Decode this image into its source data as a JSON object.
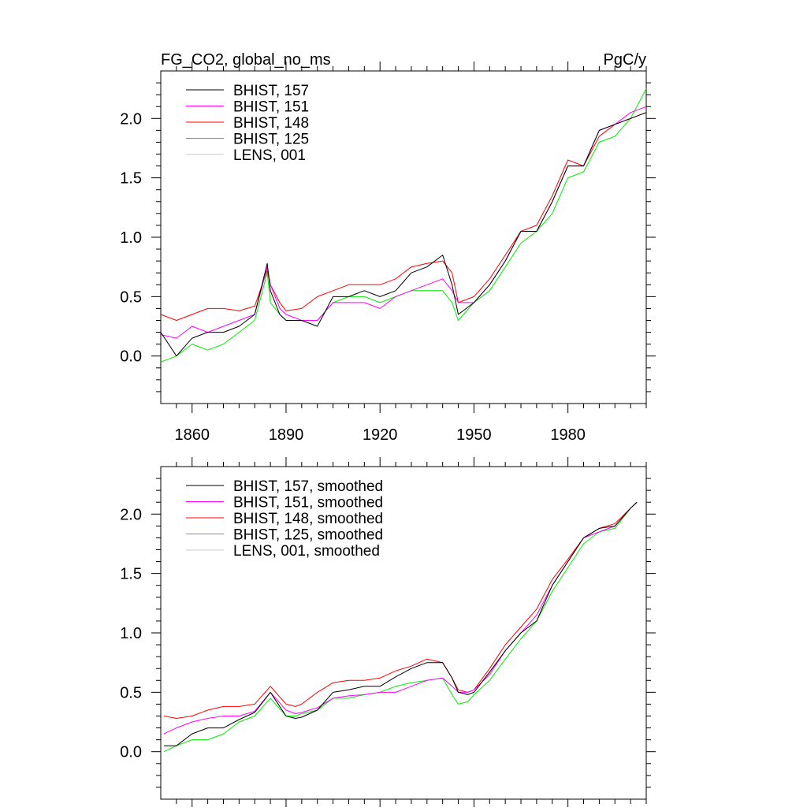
{
  "colors": {
    "black": "#000000",
    "magenta": "#ff00ff",
    "red": "#ff0000",
    "green": "#00ee00",
    "gray": "#c8c8c8"
  },
  "chart_data": [
    {
      "type": "line",
      "title_left": "FG_CO2, global_no_ms",
      "title_right": "PgC/y",
      "xlim": [
        1850,
        2005
      ],
      "ylim": [
        -0.4,
        2.4
      ],
      "x_ticks": [
        1860,
        1890,
        1920,
        1950,
        1980
      ],
      "x_tick_labels": [
        "1860",
        "1890",
        "1920",
        "1950",
        "1980"
      ],
      "y_ticks": [
        0.0,
        0.5,
        1.0,
        1.5,
        2.0
      ],
      "y_tick_labels": [
        "0.0",
        "0.5",
        "1.0",
        "1.5",
        "2.0"
      ],
      "legend_position": "top-left",
      "grid": false,
      "series": [
        {
          "name": "BHIST, 157",
          "color": "black",
          "x": [
            1850,
            1855,
            1860,
            1865,
            1870,
            1875,
            1880,
            1884,
            1885,
            1888,
            1890,
            1895,
            1900,
            1905,
            1910,
            1915,
            1920,
            1925,
            1930,
            1935,
            1940,
            1943,
            1945,
            1950,
            1955,
            1960,
            1965,
            1970,
            1975,
            1980,
            1985,
            1990,
            1995,
            2000,
            2005
          ],
          "y": [
            0.2,
            0.0,
            0.15,
            0.2,
            0.2,
            0.25,
            0.35,
            0.78,
            0.55,
            0.35,
            0.3,
            0.3,
            0.25,
            0.5,
            0.5,
            0.55,
            0.5,
            0.55,
            0.7,
            0.75,
            0.85,
            0.6,
            0.35,
            0.45,
            0.6,
            0.8,
            1.05,
            1.05,
            1.3,
            1.6,
            1.6,
            1.9,
            1.95,
            2.0,
            2.05
          ]
        },
        {
          "name": "BHIST, 151",
          "color": "magenta",
          "x": [
            1850,
            1855,
            1860,
            1865,
            1870,
            1875,
            1880,
            1884,
            1885,
            1888,
            1890,
            1895,
            1900,
            1905,
            1910,
            1915,
            1920,
            1925,
            1930,
            1935,
            1940,
            1943,
            1945,
            1950,
            1955,
            1960,
            1965,
            1970,
            1975,
            1980,
            1985,
            1990,
            1995,
            2000,
            2005
          ],
          "y": [
            0.18,
            0.15,
            0.25,
            0.2,
            0.25,
            0.3,
            0.35,
            0.75,
            0.6,
            0.4,
            0.35,
            0.3,
            0.3,
            0.45,
            0.45,
            0.45,
            0.4,
            0.5,
            0.55,
            0.6,
            0.65,
            0.55,
            0.45,
            0.45,
            0.6,
            0.8,
            1.05,
            1.05,
            1.3,
            1.6,
            1.6,
            1.9,
            1.95,
            2.05,
            2.1
          ]
        },
        {
          "name": "BHIST, 148",
          "color": "red",
          "x": [
            1850,
            1855,
            1860,
            1865,
            1870,
            1875,
            1880,
            1884,
            1885,
            1888,
            1890,
            1895,
            1900,
            1905,
            1910,
            1915,
            1920,
            1925,
            1930,
            1935,
            1940,
            1943,
            1945,
            1950,
            1955,
            1960,
            1965,
            1970,
            1975,
            1980,
            1985,
            1990,
            1995,
            2000,
            2005
          ],
          "y": [
            0.35,
            0.3,
            0.35,
            0.4,
            0.4,
            0.38,
            0.42,
            0.72,
            0.6,
            0.45,
            0.38,
            0.4,
            0.5,
            0.55,
            0.6,
            0.6,
            0.6,
            0.65,
            0.75,
            0.78,
            0.8,
            0.7,
            0.45,
            0.5,
            0.65,
            0.85,
            1.05,
            1.1,
            1.35,
            1.65,
            1.6,
            1.85,
            1.95,
            2.0,
            2.05
          ]
        },
        {
          "name": "BHIST, 125",
          "color": "green",
          "x": [
            1850,
            1855,
            1860,
            1865,
            1870,
            1875,
            1880,
            1884,
            1885,
            1888,
            1890,
            1895,
            1900,
            1905,
            1910,
            1915,
            1920,
            1925,
            1930,
            1935,
            1940,
            1943,
            1945,
            1950,
            1955,
            1960,
            1965,
            1970,
            1975,
            1980,
            1985,
            1990,
            1995,
            2000,
            2005
          ],
          "y": [
            -0.05,
            0.0,
            0.1,
            0.05,
            0.1,
            0.2,
            0.3,
            0.7,
            0.45,
            0.35,
            0.3,
            0.3,
            0.3,
            0.45,
            0.5,
            0.5,
            0.45,
            0.5,
            0.55,
            0.55,
            0.55,
            0.45,
            0.3,
            0.45,
            0.55,
            0.75,
            0.95,
            1.05,
            1.2,
            1.5,
            1.55,
            1.8,
            1.85,
            2.0,
            2.25
          ]
        },
        {
          "name": "LENS, 001",
          "color": "gray",
          "x": [],
          "y": []
        }
      ]
    },
    {
      "type": "line",
      "xlim": [
        1850,
        2005
      ],
      "ylim": [
        -0.4,
        2.4
      ],
      "x_ticks": [
        1860,
        1890,
        1920,
        1950,
        1980
      ],
      "y_ticks": [
        0.0,
        0.5,
        1.0,
        1.5,
        2.0
      ],
      "y_tick_labels": [
        "0.0",
        "0.5",
        "1.0",
        "1.5",
        "2.0"
      ],
      "legend_position": "top-left",
      "grid": false,
      "series": [
        {
          "name": "BHIST, 157, smoothed",
          "color": "black",
          "x": [
            1851,
            1855,
            1860,
            1865,
            1870,
            1875,
            1880,
            1885,
            1890,
            1893,
            1895,
            1900,
            1905,
            1910,
            1915,
            1920,
            1925,
            1930,
            1935,
            1940,
            1943,
            1945,
            1948,
            1950,
            1955,
            1960,
            1965,
            1970,
            1975,
            1980,
            1985,
            1990,
            1995,
            2000,
            2002
          ],
          "y": [
            0.05,
            0.05,
            0.15,
            0.2,
            0.2,
            0.27,
            0.33,
            0.5,
            0.3,
            0.28,
            0.29,
            0.35,
            0.5,
            0.52,
            0.55,
            0.55,
            0.63,
            0.7,
            0.75,
            0.75,
            0.62,
            0.5,
            0.48,
            0.5,
            0.67,
            0.85,
            1.0,
            1.1,
            1.4,
            1.6,
            1.8,
            1.88,
            1.9,
            2.05,
            2.1
          ]
        },
        {
          "name": "BHIST, 151, smoothed",
          "color": "magenta",
          "x": [
            1851,
            1855,
            1860,
            1865,
            1870,
            1875,
            1880,
            1885,
            1890,
            1893,
            1895,
            1900,
            1905,
            1910,
            1915,
            1920,
            1925,
            1930,
            1935,
            1940,
            1943,
            1945,
            1948,
            1950,
            1955,
            1960,
            1965,
            1970,
            1975,
            1980,
            1985,
            1990,
            1995,
            2000,
            2002
          ],
          "y": [
            0.15,
            0.2,
            0.25,
            0.28,
            0.3,
            0.3,
            0.34,
            0.5,
            0.35,
            0.32,
            0.33,
            0.37,
            0.45,
            0.47,
            0.48,
            0.5,
            0.5,
            0.55,
            0.6,
            0.62,
            0.55,
            0.5,
            0.5,
            0.52,
            0.65,
            0.85,
            1.0,
            1.15,
            1.4,
            1.6,
            1.8,
            1.85,
            1.9,
            2.05,
            2.1
          ]
        },
        {
          "name": "BHIST, 148, smoothed",
          "color": "red",
          "x": [
            1851,
            1855,
            1860,
            1865,
            1870,
            1875,
            1880,
            1885,
            1890,
            1893,
            1895,
            1900,
            1905,
            1910,
            1915,
            1920,
            1925,
            1930,
            1935,
            1940,
            1943,
            1945,
            1948,
            1950,
            1955,
            1960,
            1965,
            1970,
            1975,
            1980,
            1985,
            1990,
            1995,
            2000,
            2002
          ],
          "y": [
            0.3,
            0.28,
            0.3,
            0.35,
            0.38,
            0.38,
            0.4,
            0.55,
            0.4,
            0.38,
            0.4,
            0.5,
            0.58,
            0.6,
            0.6,
            0.62,
            0.68,
            0.72,
            0.78,
            0.75,
            0.62,
            0.52,
            0.5,
            0.52,
            0.7,
            0.9,
            1.05,
            1.2,
            1.45,
            1.62,
            1.8,
            1.88,
            1.92,
            2.05,
            2.1
          ]
        },
        {
          "name": "BHIST, 125, smoothed",
          "color": "green",
          "x": [
            1851,
            1855,
            1860,
            1865,
            1870,
            1875,
            1880,
            1885,
            1890,
            1893,
            1895,
            1900,
            1905,
            1910,
            1915,
            1920,
            1925,
            1930,
            1935,
            1940,
            1943,
            1945,
            1948,
            1950,
            1955,
            1960,
            1965,
            1970,
            1975,
            1980,
            1985,
            1990,
            1995,
            2000,
            2002
          ],
          "y": [
            0.0,
            0.05,
            0.1,
            0.1,
            0.15,
            0.25,
            0.3,
            0.45,
            0.3,
            0.3,
            0.32,
            0.35,
            0.45,
            0.45,
            0.48,
            0.5,
            0.55,
            0.58,
            0.6,
            0.62,
            0.48,
            0.4,
            0.42,
            0.48,
            0.6,
            0.78,
            0.95,
            1.1,
            1.35,
            1.55,
            1.75,
            1.85,
            1.88,
            2.05,
            2.1
          ]
        },
        {
          "name": "LENS, 001, smoothed",
          "color": "gray",
          "x": [],
          "y": []
        }
      ]
    }
  ]
}
